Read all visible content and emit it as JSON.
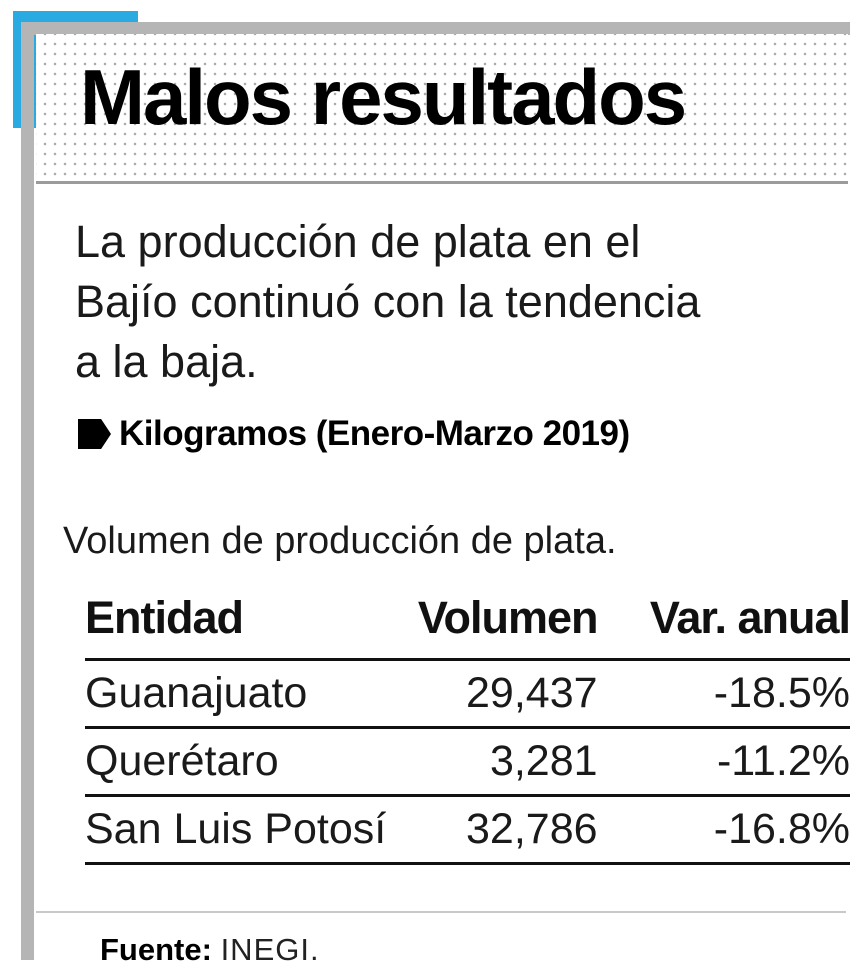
{
  "chart_data": {
    "type": "table",
    "title": "Malos resultados",
    "intro_lines": [
      "La producción de plata en el",
      "Bajío continuó con la tendencia",
      "a la baja."
    ],
    "subtitle": "Kilogramos (Enero-Marzo 2019)",
    "caption": "Volumen de producción de plata.",
    "columns": [
      "Entidad",
      "Volumen",
      "Var. anual"
    ],
    "rows": [
      [
        "Guanajuato",
        "29,437",
        "-18.5%"
      ],
      [
        "Querétaro",
        "3,281",
        "-11.2%"
      ],
      [
        "San Luis Potosí",
        "32,786",
        "-16.8%"
      ]
    ],
    "source_label": "Fuente:",
    "source": "INEGI.",
    "accent_color": "#29abe2",
    "frame_color": "#b5b5b5",
    "layout": {
      "legend": "none",
      "grid": "row-rules-only",
      "volume_alignment": "right",
      "variation_alignment": "right"
    }
  }
}
